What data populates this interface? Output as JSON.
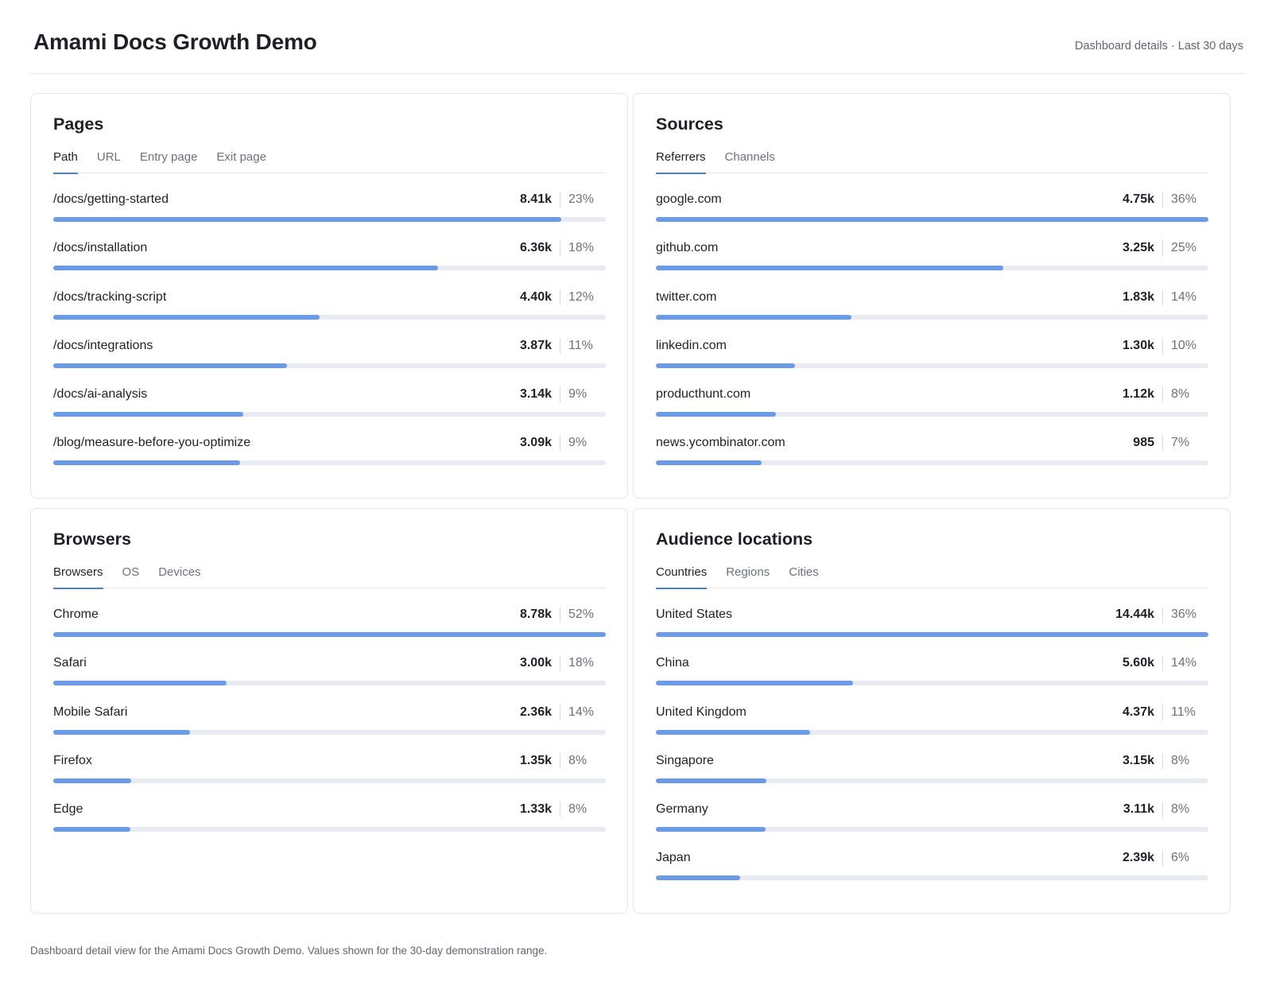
{
  "header": {
    "title": "Amami Docs Growth Demo",
    "meta": "Dashboard details · Last 30 days"
  },
  "panels": [
    {
      "title": "Pages",
      "tabs": [
        "Path",
        "URL",
        "Entry page",
        "Exit page"
      ],
      "active_tab": 0,
      "max": 8410,
      "rows": [
        {
          "label": "/docs/getting-started",
          "value": "8.41k",
          "pct": "23%",
          "raw": 8410
        },
        {
          "label": "/docs/installation",
          "value": "6.36k",
          "pct": "18%",
          "raw": 6360
        },
        {
          "label": "/docs/tracking-script",
          "value": "4.40k",
          "pct": "12%",
          "raw": 4400
        },
        {
          "label": "/docs/integrations",
          "value": "3.87k",
          "pct": "11%",
          "raw": 3870
        },
        {
          "label": "/docs/ai-analysis",
          "value": "3.14k",
          "pct": "9%",
          "raw": 3140
        },
        {
          "label": "/blog/measure-before-you-optimize",
          "value": "3.09k",
          "pct": "9%",
          "raw": 3090
        }
      ]
    },
    {
      "title": "Sources",
      "tabs": [
        "Referrers",
        "Channels"
      ],
      "active_tab": 0,
      "max": 4750,
      "rows": [
        {
          "label": "google.com",
          "value": "4.75k",
          "pct": "36%",
          "raw": 4750
        },
        {
          "label": "github.com",
          "value": "3.25k",
          "pct": "25%",
          "raw": 3250
        },
        {
          "label": "twitter.com",
          "value": "1.83k",
          "pct": "14%",
          "raw": 1830
        },
        {
          "label": "linkedin.com",
          "value": "1.30k",
          "pct": "10%",
          "raw": 1300
        },
        {
          "label": "producthunt.com",
          "value": "1.12k",
          "pct": "8%",
          "raw": 1120
        },
        {
          "label": "news.ycombinator.com",
          "value": "985",
          "pct": "7%",
          "raw": 985
        }
      ]
    },
    {
      "title": "Browsers",
      "tabs": [
        "Browsers",
        "OS",
        "Devices"
      ],
      "active_tab": 0,
      "max": 8780,
      "rows": [
        {
          "label": "Chrome",
          "value": "8.78k",
          "pct": "52%",
          "raw": 8780
        },
        {
          "label": "Safari",
          "value": "3.00k",
          "pct": "18%",
          "raw": 3000
        },
        {
          "label": "Mobile Safari",
          "value": "2.36k",
          "pct": "14%",
          "raw": 2360
        },
        {
          "label": "Firefox",
          "value": "1.35k",
          "pct": "8%",
          "raw": 1350
        },
        {
          "label": "Edge",
          "value": "1.33k",
          "pct": "8%",
          "raw": 1330
        }
      ]
    },
    {
      "title": "Audience locations",
      "tabs": [
        "Countries",
        "Regions",
        "Cities"
      ],
      "active_tab": 0,
      "max": 14440,
      "rows": [
        {
          "label": "United States",
          "value": "14.44k",
          "pct": "36%",
          "raw": 14440
        },
        {
          "label": "China",
          "value": "5.60k",
          "pct": "14%",
          "raw": 5600
        },
        {
          "label": "United Kingdom",
          "value": "4.37k",
          "pct": "11%",
          "raw": 4370
        },
        {
          "label": "Singapore",
          "value": "3.15k",
          "pct": "8%",
          "raw": 3150
        },
        {
          "label": "Germany",
          "value": "3.11k",
          "pct": "8%",
          "raw": 3110
        },
        {
          "label": "Japan",
          "value": "2.39k",
          "pct": "6%",
          "raw": 2390
        }
      ]
    }
  ],
  "footer": "Dashboard detail view for the Amami Docs Growth Demo. Values shown for the 30-day demonstration range.",
  "colors": {
    "bar_fill": "#6b9be6",
    "bar_track": "#e8ecf2",
    "tab_underline": "#4a7fd8"
  }
}
